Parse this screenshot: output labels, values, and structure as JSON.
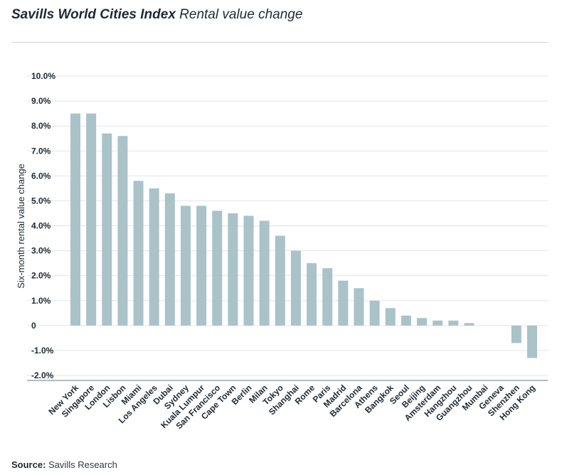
{
  "header": {
    "title_bold": "Savills World Cities Index",
    "title_light": "Rental value change"
  },
  "footer": {
    "source_label": "Source:",
    "source_value": "Savills Research"
  },
  "chart_data": {
    "type": "bar",
    "title": "Savills World Cities Index Rental value change",
    "ylabel": "Six-month rental value change",
    "xlabel": "",
    "ylim": [
      -2.0,
      10.0
    ],
    "yticks": [
      10.0,
      9.0,
      8.0,
      7.0,
      6.0,
      5.0,
      4.0,
      3.0,
      2.0,
      1.0,
      0,
      -1.0,
      -2.0
    ],
    "ytick_labels": [
      "10.0%",
      "9.0%",
      "8.0%",
      "7.0%",
      "6.0%",
      "5.0%",
      "4.0%",
      "3.0%",
      "2.0%",
      "1.0%",
      "0",
      "-1.0%",
      "-2.0%"
    ],
    "grid": true,
    "bar_color": "#a9c3c8",
    "categories": [
      "New York",
      "Singapore",
      "London",
      "Lisbon",
      "Miami",
      "Los Angeles",
      "Dubai",
      "Sydney",
      "Kuala Lumpur",
      "San Francisco",
      "Cape Town",
      "Berlin",
      "Milan",
      "Tokyo",
      "Shanghai",
      "Rome",
      "Paris",
      "Madrid",
      "Barcelona",
      "Athens",
      "Bangkok",
      "Seoul",
      "Beijing",
      "Amsterdam",
      "Hangzhou",
      "Guangzhou",
      "Mumbai",
      "Geneva",
      "Shenzhen",
      "Hong Kong"
    ],
    "values": [
      8.5,
      8.5,
      7.7,
      7.6,
      5.8,
      5.5,
      5.3,
      4.8,
      4.8,
      4.6,
      4.5,
      4.4,
      4.2,
      3.6,
      3.0,
      2.5,
      2.3,
      1.8,
      1.5,
      1.0,
      0.7,
      0.4,
      0.3,
      0.2,
      0.2,
      0.1,
      0.0,
      0.0,
      -0.7,
      -1.3
    ]
  }
}
